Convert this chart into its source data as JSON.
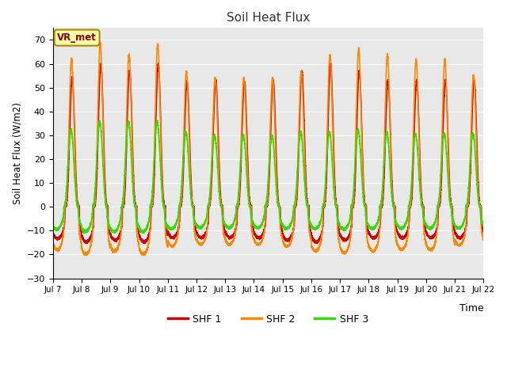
{
  "title": "Soil Heat Flux",
  "ylabel": "Soil Heat Flux (W/m2)",
  "xlabel": "Time",
  "xlim_start": 0,
  "xlim_end": 15,
  "ylim": [
    -30,
    75
  ],
  "yticks": [
    -30,
    -20,
    -10,
    0,
    10,
    20,
    30,
    40,
    50,
    60,
    70
  ],
  "xtick_labels": [
    "Jul 7",
    "Jul 8",
    "Jul 9",
    "Jul 10",
    "Jul 11",
    "Jul 12",
    "Jul 13",
    "Jul 14",
    "Jul 15",
    "Jul 16",
    "Jul 17",
    "Jul 18",
    "Jul 19",
    "Jul 20",
    "Jul 21",
    "Jul 22"
  ],
  "colors": {
    "SHF1": "#cc0000",
    "SHF2": "#ff8800",
    "SHF3": "#33dd00"
  },
  "legend_labels": [
    "SHF 1",
    "SHF 2",
    "SHF 3"
  ],
  "bg_color": "#e8e8e8",
  "annotation_text": "VR_met",
  "annotation_box_color": "#ffffaa",
  "annotation_box_edge": "#aa8800",
  "linewidth": 1.2
}
